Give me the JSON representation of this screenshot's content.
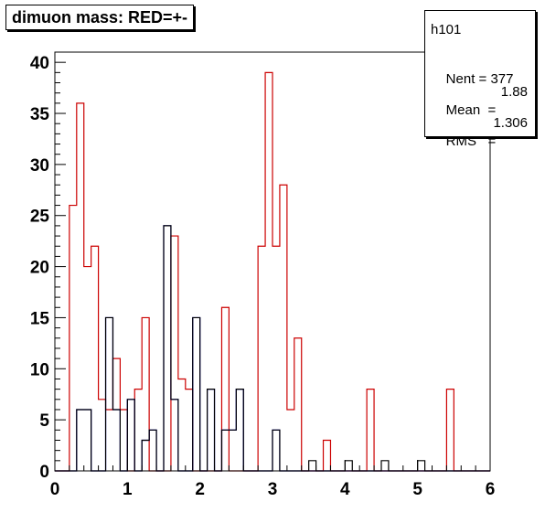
{
  "title": "dimuon mass: RED=+-",
  "stats": {
    "name": "h101",
    "entries_label": "Nent = ",
    "entries_value": "377",
    "mean_label": "Mean  = ",
    "mean_value": "1.88",
    "rms_label": "RMS   = ",
    "rms_value": "1.306"
  },
  "colors": {
    "red": "#cc0000",
    "blue": "#0000cc",
    "black": "#000000"
  },
  "chart_data": {
    "type": "histogram",
    "title": "dimuon mass: RED=+-",
    "xlim": [
      0,
      6
    ],
    "ylim": [
      0,
      41
    ],
    "bin_width": 0.1,
    "xticks": [
      0,
      1,
      2,
      3,
      4,
      5,
      6
    ],
    "yticks": [
      0,
      5,
      10,
      15,
      20,
      25,
      30,
      35,
      40
    ],
    "series": [
      {
        "color": "red",
        "bins": [
          [
            0.2,
            26
          ],
          [
            0.3,
            36
          ],
          [
            0.4,
            20
          ],
          [
            0.5,
            22
          ],
          [
            0.6,
            7
          ],
          [
            0.7,
            6
          ],
          [
            0.8,
            11
          ],
          [
            0.9,
            6
          ],
          [
            1.1,
            8
          ],
          [
            1.2,
            15
          ],
          [
            1.6,
            23
          ],
          [
            1.7,
            9
          ],
          [
            1.8,
            8
          ],
          [
            2.3,
            16
          ],
          [
            2.8,
            22
          ],
          [
            2.9,
            39
          ],
          [
            3.0,
            22
          ],
          [
            3.1,
            28
          ],
          [
            3.2,
            6
          ],
          [
            3.3,
            13
          ],
          [
            3.7,
            3
          ],
          [
            4.3,
            8
          ],
          [
            5.4,
            8
          ]
        ]
      },
      {
        "color": "blue",
        "bins": [
          [
            0.3,
            6
          ],
          [
            0.4,
            6
          ],
          [
            0.7,
            15
          ],
          [
            0.8,
            6
          ],
          [
            1.0,
            7
          ],
          [
            1.2,
            3
          ],
          [
            1.3,
            4
          ],
          [
            1.5,
            24
          ],
          [
            1.6,
            7
          ],
          [
            1.9,
            15
          ],
          [
            2.1,
            8
          ],
          [
            2.3,
            4
          ],
          [
            2.4,
            4
          ],
          [
            2.5,
            8
          ],
          [
            3.0,
            4
          ]
        ]
      },
      {
        "color": "black",
        "bins": [
          [
            0.3,
            6
          ],
          [
            0.4,
            6
          ],
          [
            0.7,
            15
          ],
          [
            0.8,
            6
          ],
          [
            1.0,
            7
          ],
          [
            1.2,
            3
          ],
          [
            1.3,
            4
          ],
          [
            1.5,
            24
          ],
          [
            1.6,
            7
          ],
          [
            1.9,
            15
          ],
          [
            2.1,
            8
          ],
          [
            2.3,
            4
          ],
          [
            2.4,
            4
          ],
          [
            2.5,
            8
          ],
          [
            3.0,
            4
          ],
          [
            3.5,
            1
          ],
          [
            4.0,
            1
          ],
          [
            4.5,
            1
          ],
          [
            5.0,
            1
          ]
        ]
      }
    ]
  }
}
